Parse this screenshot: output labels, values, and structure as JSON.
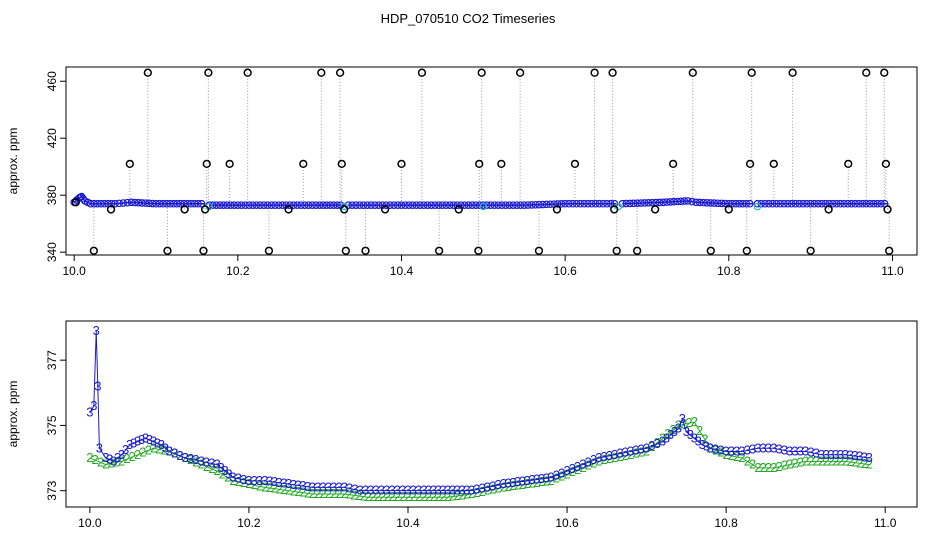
{
  "title": "HDP_070510  CO2 Timeseries",
  "colors": {
    "axis": "#000000",
    "outlier_marker": "#000000",
    "drop_line": "#999999",
    "series_blue": "#1a1acd",
    "series_green": "#22aa22",
    "series_cyan": "#2fbfbf"
  },
  "chart_data": [
    {
      "type": "scatter",
      "panel": "top",
      "ylabel": "approx. ppm",
      "xlabel": "",
      "xlim": [
        9.99,
        11.03
      ],
      "ylim": [
        338,
        470
      ],
      "x_ticks": [
        10.0,
        10.2,
        10.4,
        10.6,
        10.8,
        11.0
      ],
      "x_tick_labels": [
        "10.0",
        "10.2",
        "10.4",
        "10.6",
        "10.8",
        "11.0"
      ],
      "y_ticks": [
        340,
        380,
        420,
        460
      ],
      "y_tick_labels": [
        "340",
        "380",
        "420",
        "460"
      ],
      "grid": false,
      "baseline": {
        "description_marker": "o",
        "color_name": "series_blue",
        "x_start": 10.0,
        "x_end": 10.995,
        "segments": [
          {
            "x": [
              10.0,
              10.006,
              10.009,
              10.013,
              10.02,
              10.05,
              10.07,
              10.1,
              10.13,
              10.16
            ],
            "y": [
              375,
              378,
              379,
              376,
              374,
              374,
              375,
              374,
              374,
              374
            ]
          },
          {
            "x": [
              10.165,
              10.2,
              10.25,
              10.3,
              10.33
            ],
            "y": [
              373,
              373,
              373,
              373,
              373
            ]
          },
          {
            "x": [
              10.335,
              10.4,
              10.45,
              10.5,
              10.55,
              10.6,
              10.665
            ],
            "y": [
              373,
              373,
              373,
              373,
              373,
              374,
              374
            ]
          },
          {
            "x": [
              10.67,
              10.72,
              10.75,
              10.76,
              10.8,
              10.83
            ],
            "y": [
              374,
              375,
              376,
              375,
              374,
              374
            ]
          },
          {
            "x": [
              10.835,
              10.9,
              10.95,
              10.995
            ],
            "y": [
              374,
              374,
              374,
              374
            ]
          }
        ]
      },
      "outliers": {
        "marker": "o",
        "points": [
          [
            10.002,
            375
          ],
          [
            10.024,
            341
          ],
          [
            10.045,
            370
          ],
          [
            10.068,
            402
          ],
          [
            10.09,
            466
          ],
          [
            10.114,
            341
          ],
          [
            10.135,
            370
          ],
          [
            10.158,
            341
          ],
          [
            10.16,
            370
          ],
          [
            10.162,
            402
          ],
          [
            10.164,
            466
          ],
          [
            10.19,
            402
          ],
          [
            10.212,
            466
          ],
          [
            10.238,
            341
          ],
          [
            10.262,
            370
          ],
          [
            10.28,
            402
          ],
          [
            10.302,
            466
          ],
          [
            10.325,
            466
          ],
          [
            10.327,
            402
          ],
          [
            10.33,
            370
          ],
          [
            10.332,
            341
          ],
          [
            10.356,
            341
          ],
          [
            10.38,
            370
          ],
          [
            10.4,
            402
          ],
          [
            10.425,
            466
          ],
          [
            10.446,
            341
          ],
          [
            10.47,
            370
          ],
          [
            10.494,
            341
          ],
          [
            10.495,
            402
          ],
          [
            10.498,
            466
          ],
          [
            10.522,
            402
          ],
          [
            10.545,
            466
          ],
          [
            10.568,
            341
          ],
          [
            10.59,
            370
          ],
          [
            10.612,
            402
          ],
          [
            10.636,
            466
          ],
          [
            10.658,
            466
          ],
          [
            10.66,
            370
          ],
          [
            10.663,
            341
          ],
          [
            10.688,
            341
          ],
          [
            10.71,
            370
          ],
          [
            10.732,
            402
          ],
          [
            10.756,
            466
          ],
          [
            10.778,
            341
          ],
          [
            10.8,
            370
          ],
          [
            10.822,
            341
          ],
          [
            10.826,
            402
          ],
          [
            10.828,
            466
          ],
          [
            10.855,
            402
          ],
          [
            10.878,
            466
          ],
          [
            10.9,
            341
          ],
          [
            10.922,
            370
          ],
          [
            10.946,
            402
          ],
          [
            10.968,
            466
          ],
          [
            10.99,
            466
          ],
          [
            10.992,
            402
          ],
          [
            10.994,
            370
          ],
          [
            10.996,
            341
          ]
        ]
      }
    },
    {
      "type": "line",
      "panel": "bottom",
      "ylabel": "approx. ppm",
      "xlabel": "",
      "xlim": [
        9.97,
        11.04
      ],
      "ylim": [
        372.5,
        378.2
      ],
      "x_ticks": [
        10.0,
        10.2,
        10.4,
        10.6,
        10.8,
        11.0
      ],
      "x_tick_labels": [
        "10.0",
        "10.2",
        "10.4",
        "10.6",
        "10.8",
        "11.0"
      ],
      "y_ticks": [
        373,
        375,
        377
      ],
      "y_tick_labels": [
        "373",
        "375",
        "377"
      ],
      "grid": false,
      "series": [
        {
          "marker_label": "3",
          "color_name": "series_blue",
          "x": [
            10.0,
            10.005,
            10.008,
            10.01,
            10.012,
            10.02,
            10.03,
            10.04,
            10.05,
            10.06,
            10.07,
            10.08,
            10.09,
            10.1,
            10.12,
            10.14,
            10.16,
            10.17,
            10.18,
            10.2,
            10.22,
            10.25,
            10.28,
            10.3,
            10.32,
            10.34,
            10.36,
            10.38,
            10.4,
            10.42,
            10.45,
            10.48,
            10.5,
            10.52,
            10.55,
            10.58,
            10.6,
            10.62,
            10.64,
            10.66,
            10.68,
            10.7,
            10.72,
            10.73,
            10.74,
            10.745,
            10.75,
            10.76,
            10.77,
            10.78,
            10.8,
            10.82,
            10.84,
            10.86,
            10.88,
            10.9,
            10.92,
            10.95,
            10.98
          ],
          "y": [
            375.4,
            375.6,
            377.9,
            376.2,
            374.3,
            374.0,
            373.9,
            374.1,
            374.4,
            374.5,
            374.6,
            374.5,
            374.4,
            374.2,
            374.0,
            373.9,
            373.8,
            373.6,
            373.4,
            373.3,
            373.3,
            373.2,
            373.1,
            373.1,
            373.1,
            373.0,
            373.0,
            373.0,
            373.0,
            373.0,
            373.0,
            373.0,
            373.1,
            373.2,
            373.3,
            373.4,
            373.6,
            373.8,
            374.0,
            374.1,
            374.2,
            374.3,
            374.5,
            374.7,
            374.9,
            375.2,
            374.8,
            374.6,
            374.4,
            374.3,
            374.2,
            374.2,
            374.3,
            374.3,
            374.2,
            374.2,
            374.1,
            374.1,
            374.0
          ]
        },
        {
          "marker_label": "2",
          "color_name": "series_green",
          "x": [
            10.0,
            10.02,
            10.04,
            10.06,
            10.08,
            10.1,
            10.12,
            10.14,
            10.16,
            10.18,
            10.2,
            10.22,
            10.25,
            10.28,
            10.3,
            10.32,
            10.35,
            10.38,
            10.4,
            10.42,
            10.45,
            10.48,
            10.5,
            10.52,
            10.55,
            10.58,
            10.6,
            10.62,
            10.64,
            10.66,
            10.68,
            10.7,
            10.72,
            10.74,
            10.76,
            10.78,
            10.8,
            10.82,
            10.84,
            10.86,
            10.88,
            10.9,
            10.92,
            10.95,
            10.98
          ],
          "y": [
            374.0,
            373.8,
            373.9,
            374.1,
            374.3,
            374.2,
            374.0,
            373.8,
            373.6,
            373.3,
            373.2,
            373.1,
            373.0,
            372.9,
            372.9,
            372.9,
            372.8,
            372.8,
            372.8,
            372.8,
            372.8,
            372.9,
            373.0,
            373.1,
            373.2,
            373.3,
            373.5,
            373.7,
            373.9,
            374.0,
            374.1,
            374.2,
            374.6,
            375.0,
            375.1,
            374.3,
            374.1,
            374.0,
            373.7,
            373.7,
            373.8,
            373.9,
            373.9,
            373.9,
            373.8
          ]
        }
      ]
    }
  ]
}
